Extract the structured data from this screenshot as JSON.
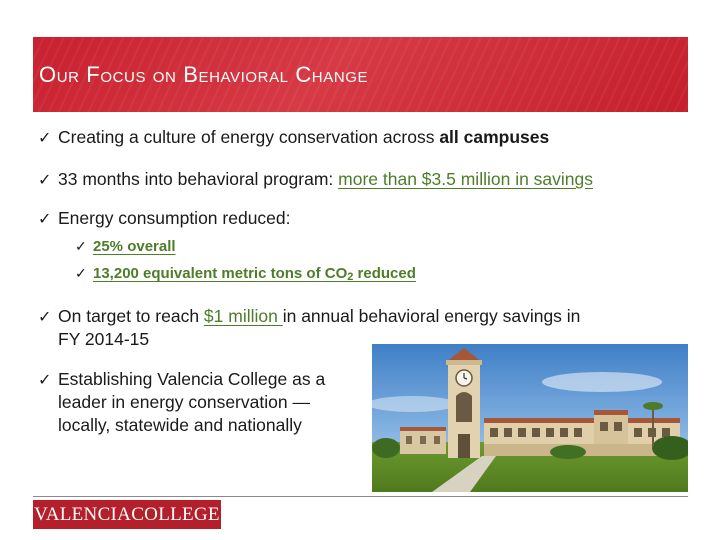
{
  "slide": {
    "title": "Our Focus on Behavioral Change",
    "check_glyph": "✓",
    "bullets": {
      "b1": {
        "text": "Creating a culture of energy conservation across ",
        "bold": "all campuses"
      },
      "b2": {
        "text": "33 months into behavioral program: ",
        "link": "more than $3.5 million in savings"
      },
      "b3": {
        "text": "Energy consumption reduced:"
      },
      "b3_sub1": {
        "text": "25% overall"
      },
      "b3_sub2": {
        "text_before": "13,200 equivalent metric tons of CO",
        "subscript": "2",
        "text_after": " reduced"
      },
      "b4": {
        "text_before": "On target to reach ",
        "link": "$1 million ",
        "text_after": "in annual behavioral energy savings in",
        "line2": "FY 2014-15"
      },
      "b5": {
        "line1": "Establishing Valencia College as a",
        "line2": "leader in energy conservation —",
        "line3": "locally, statewide and nationally"
      }
    },
    "logo": {
      "part1": "VALENCIA",
      "part2": "COLLEGE"
    },
    "colors": {
      "title_band": "#c8202f",
      "link_green": "#4e7d2a",
      "logo_red": "#b3202b"
    }
  }
}
